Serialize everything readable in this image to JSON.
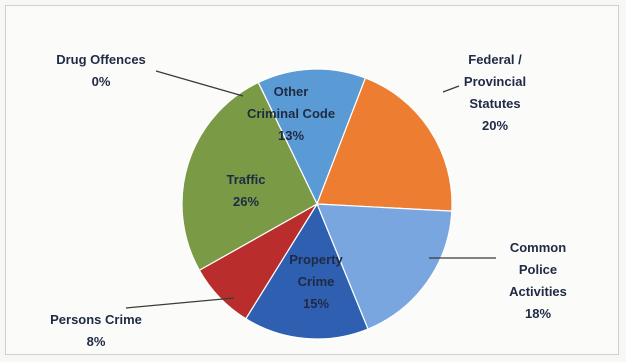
{
  "chart_data": {
    "type": "pie",
    "title": "",
    "slices": [
      {
        "name": "Other Criminal Code",
        "value": 13,
        "label_lines": [
          "Other",
          "Criminal Code",
          "13%"
        ],
        "color": "#5b9bd5"
      },
      {
        "name": "Federal / Provincial Statutes",
        "value": 20,
        "label_lines": [
          "Federal /",
          "Provincial",
          "Statutes",
          "20%"
        ],
        "color": "#ed7d31"
      },
      {
        "name": "Common Police Activities",
        "value": 18,
        "label_lines": [
          "Common",
          "Police",
          "Activities",
          "18%"
        ],
        "color": "#7aa6e0"
      },
      {
        "name": "Property Crime",
        "value": 15,
        "label_lines": [
          "Property",
          "Crime",
          "15%"
        ],
        "color": "#2e5fb0"
      },
      {
        "name": "Persons Crime",
        "value": 8,
        "label_lines": [
          "Persons Crime",
          "8%"
        ],
        "color": "#b92d2d"
      },
      {
        "name": "Traffic",
        "value": 26,
        "label_lines": [
          "Traffic",
          "26%"
        ],
        "color": "#7a9a45"
      },
      {
        "name": "Drug Offences",
        "value": 0,
        "label_lines": [
          "Drug Offences",
          "0%"
        ],
        "color": "#9e9e9e"
      }
    ]
  }
}
